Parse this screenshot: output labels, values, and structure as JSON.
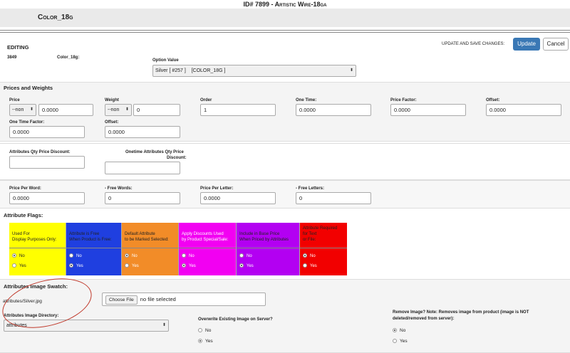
{
  "page_title": "ID# 7899 - Artistic Wire-18ga",
  "product_option_title": "Color_18g",
  "editing": {
    "heading": "EDITING",
    "id": "3849",
    "option_name": "Color_18g:",
    "option_value_label": "Option Value",
    "option_value_selected": "Silver [ #257 ]    [COLOR_18G ]",
    "update_save_label": "UPDATE AND SAVE CHANGES:",
    "update_button": "Update",
    "cancel_button": "Cancel"
  },
  "prices": {
    "heading": "Prices and Weights",
    "price_label": "Price",
    "price_prefix": "--non",
    "price_value": "0.0000",
    "weight_label": "Weight",
    "weight_prefix": "--non",
    "weight_value": "0",
    "order_label": "Order",
    "order_value": "1",
    "one_time_label": "One Time:",
    "one_time_value": "0.0000",
    "price_factor_label": "Price Factor:",
    "price_factor_value": "0.0000",
    "offset_label": "Offset:",
    "offset_value": "0.0000",
    "one_time_factor_label": "One Time Factor:",
    "one_time_factor_value": "0.0000",
    "offset2_label": "Offset:",
    "offset2_value": "0.0000",
    "qty_discount_label": "Attributes Qty Price Discount:",
    "onetime_qty_discount_label_1": "Onetime Attributes Qty Price",
    "onetime_qty_discount_label_2": "Discount:",
    "price_per_word_label": "Price Per Word:",
    "price_per_word_value": "0.0000",
    "free_words_label": "- Free Words:",
    "free_words_value": "0",
    "price_per_letter_label": "Price Per Letter:",
    "price_per_letter_value": "0.0000",
    "free_letters_label": "- Free Letters:",
    "free_letters_value": "0"
  },
  "flags": {
    "heading": "Attribute Flags:",
    "no_label": "No",
    "yes_label": "Yes",
    "columns": [
      {
        "line1": "Used For",
        "line2": "Display Purposes Only:",
        "color": "#ffff00",
        "selected": "No"
      },
      {
        "line1": "Attribute is Free",
        "line2": "When Product is Free:",
        "color": "#1f3fe0",
        "selected": "Yes"
      },
      {
        "line1": "Default Attribute",
        "line2": "to be Marked Selected:",
        "color": "#f28c28",
        "selected": "No"
      },
      {
        "line1": "Apply Discounts Used",
        "line2": "by Product Special/Sale:",
        "color": "#f200f2",
        "selected": "Yes"
      },
      {
        "line1": "Include in Base Price",
        "line2": "When Priced by Attributes",
        "color": "#b300f2",
        "selected": "Yes"
      },
      {
        "line1": "Attribute Required",
        "line2": "for Text",
        "line3": "or File:",
        "color": "#f20000",
        "selected": "No"
      }
    ]
  },
  "swatch": {
    "heading": "Attributes Image Swatch:",
    "current_file": "attributes/Silver.jpg",
    "choose_file_button": "Choose File",
    "no_file_text": "no file selected",
    "directory_label": "Attributes Image Directory:",
    "directory_value": "attributes",
    "overwrite_label": "Overwrite Existing Image on Server?",
    "overwrite_no": "No",
    "overwrite_yes": "Yes",
    "remove_label_1": "Remove Image? Note: Removes image from product (image is NOT",
    "remove_label_2": "deleted/removed from server):",
    "remove_no": "No",
    "remove_yes": "Yes"
  },
  "colors": {
    "update_button": "#3a78b5",
    "annotation": "#c0392b"
  }
}
